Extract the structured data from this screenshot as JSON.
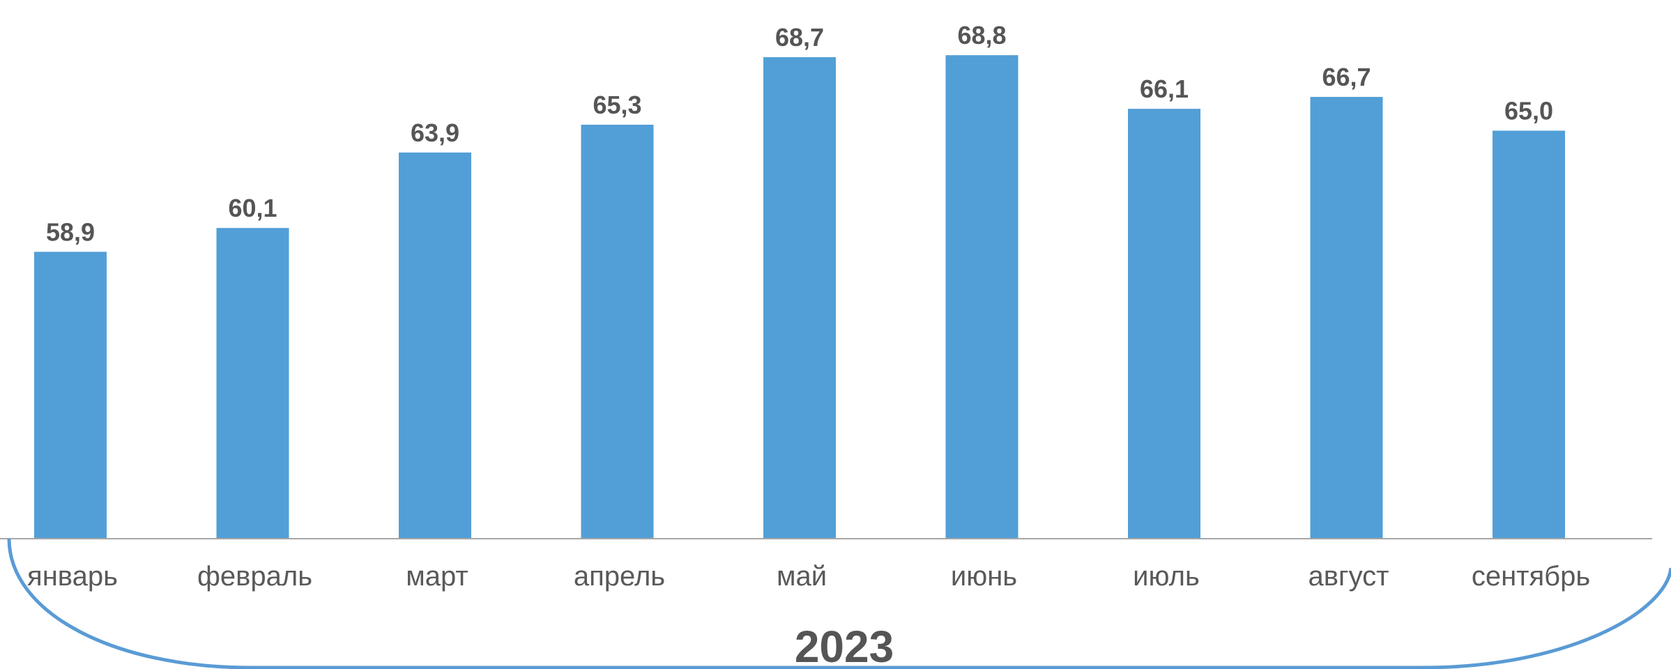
{
  "chart_data": {
    "type": "bar",
    "categories": [
      "январь",
      "февраль",
      "март",
      "апрель",
      "май",
      "июнь",
      "июль",
      "август",
      "сентябрь"
    ],
    "values": [
      58.9,
      60.1,
      63.9,
      65.3,
      68.7,
      68.8,
      66.1,
      66.7,
      65.0
    ],
    "value_labels": [
      "58,9",
      "60,1",
      "63,9",
      "65,3",
      "68,7",
      "68,8",
      "66,1",
      "66,7",
      "65,0"
    ],
    "group_label": "2023",
    "bar_color": "#529FD7",
    "label_color": "#555555",
    "axis_color": "#A6A6A6",
    "bracket_color": "#5A9BD5"
  }
}
